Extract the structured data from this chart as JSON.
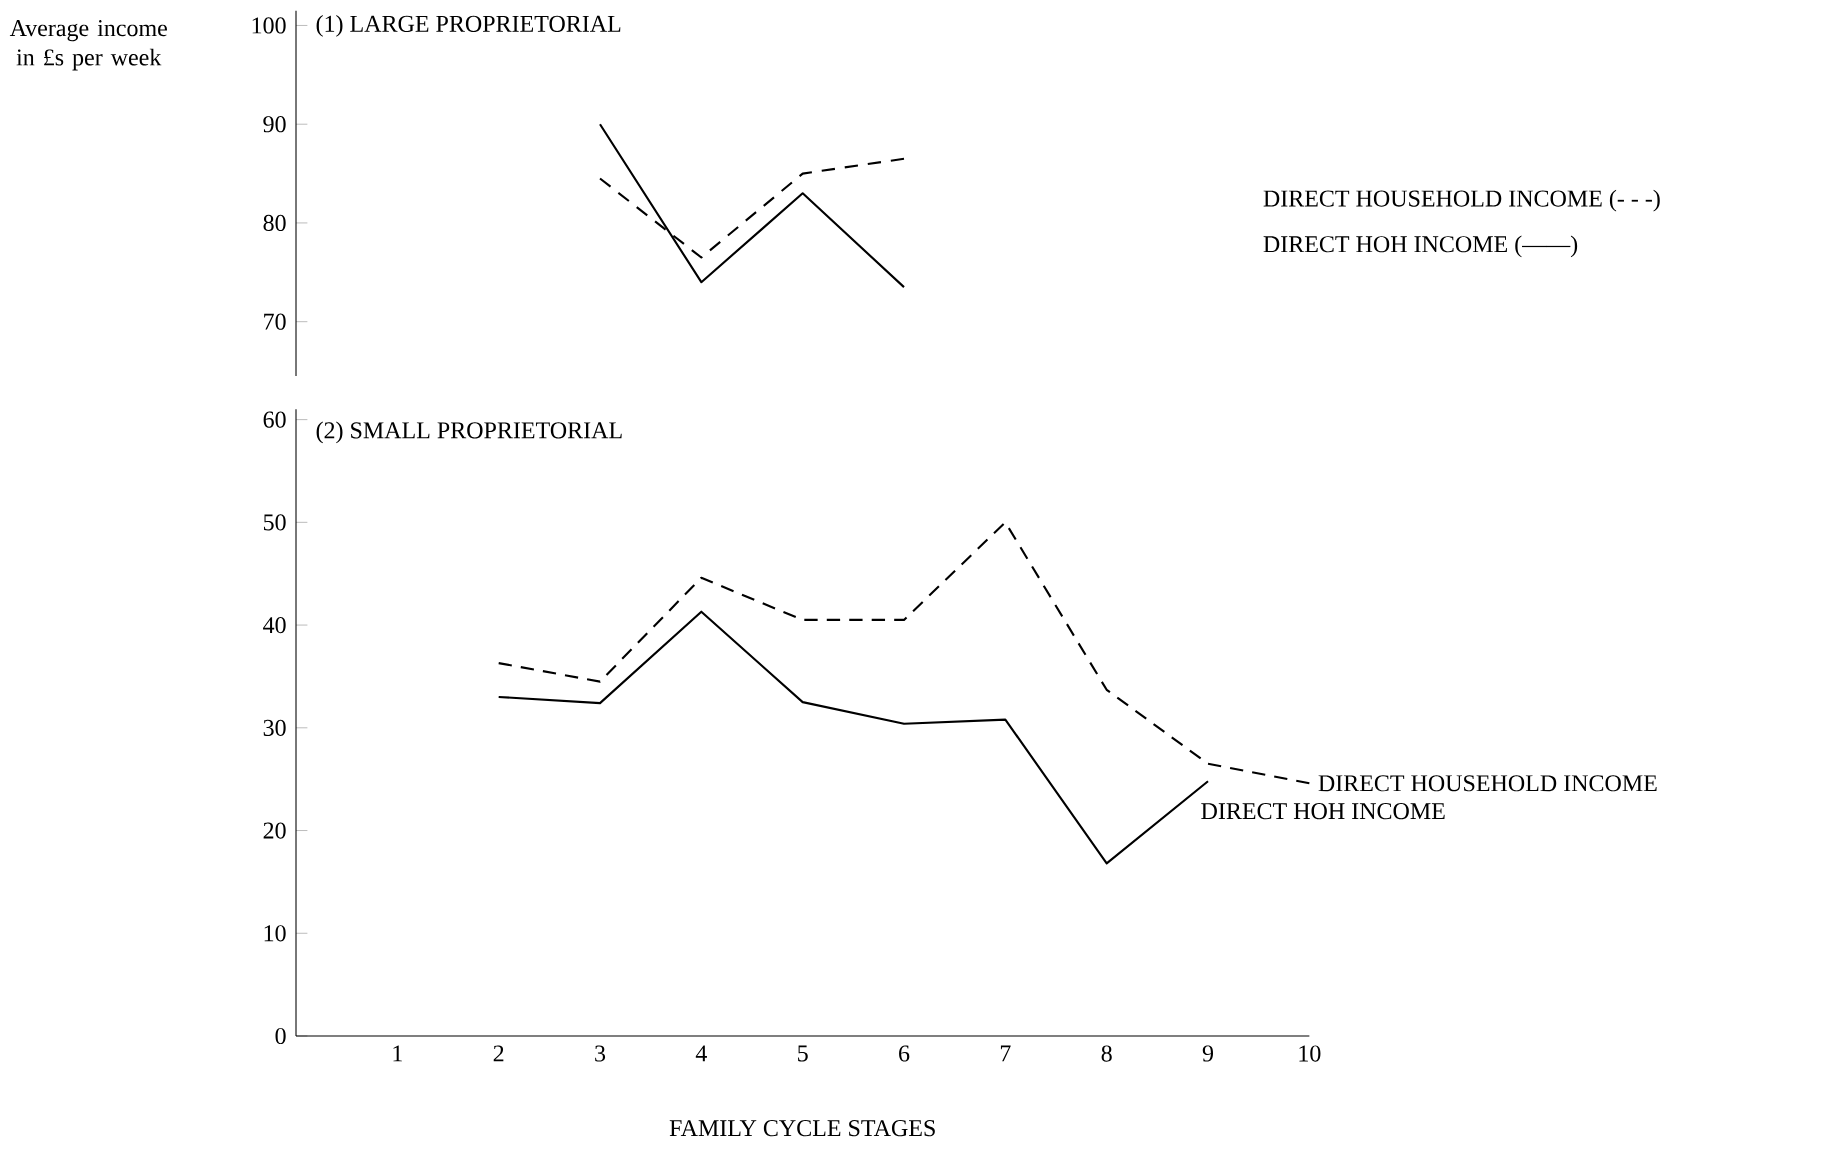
{
  "chart_data": [
    {
      "type": "line",
      "title": "(1) LARGE PROPRIETORIAL",
      "ylabel": "Average income in £s per week",
      "xlim": [
        0,
        10
      ],
      "xticks": [
        1,
        2,
        3,
        4,
        5,
        6,
        7,
        8,
        9,
        10
      ],
      "ylim": [
        64.5,
        101.5
      ],
      "yticks": [
        70,
        80,
        90,
        100
      ],
      "tick_labels": "y",
      "series": [
        {
          "name": "DIRECT HOUSEHOLD INCOME (- - -)",
          "color": "#000000",
          "line_style": "dashed",
          "x": [
            3,
            4,
            5,
            6
          ],
          "values": [
            84.5,
            76.5,
            85,
            86.5
          ]
        },
        {
          "name": "DIRECT HOH INCOME (——)",
          "color": "#000000",
          "line_style": "solid",
          "x": [
            3,
            4,
            5,
            6
          ],
          "values": [
            90,
            74,
            83,
            73.5
          ]
        }
      ]
    },
    {
      "type": "line",
      "title": "(2) SMALL PROPRIETORIAL",
      "xlabel": "FAMILY CYCLE STAGES",
      "xlim": [
        0,
        10
      ],
      "ylim": [
        0,
        61
      ],
      "xticks": [
        1,
        2,
        3,
        4,
        5,
        6,
        7,
        8,
        9,
        10
      ],
      "yticks": [
        0,
        10,
        20,
        30,
        40,
        50,
        60
      ],
      "series": [
        {
          "name": "DIRECT HOUSEHOLD INCOME",
          "color": "#000000",
          "line_style": "dashed",
          "x": [
            2,
            3,
            4,
            5,
            6,
            7,
            8,
            9,
            10
          ],
          "values": [
            36.3,
            34.5,
            44.6,
            40.5,
            40.5,
            50,
            33.7,
            26.5,
            24.6
          ]
        },
        {
          "name": "DIRECT HOH INCOME",
          "color": "#000000",
          "line_style": "solid",
          "x": [
            2,
            3,
            4,
            5,
            6,
            7,
            8,
            9
          ],
          "values": [
            33,
            32.4,
            41.3,
            32.5,
            30.4,
            30.8,
            16.8,
            24.8
          ]
        }
      ]
    }
  ]
}
